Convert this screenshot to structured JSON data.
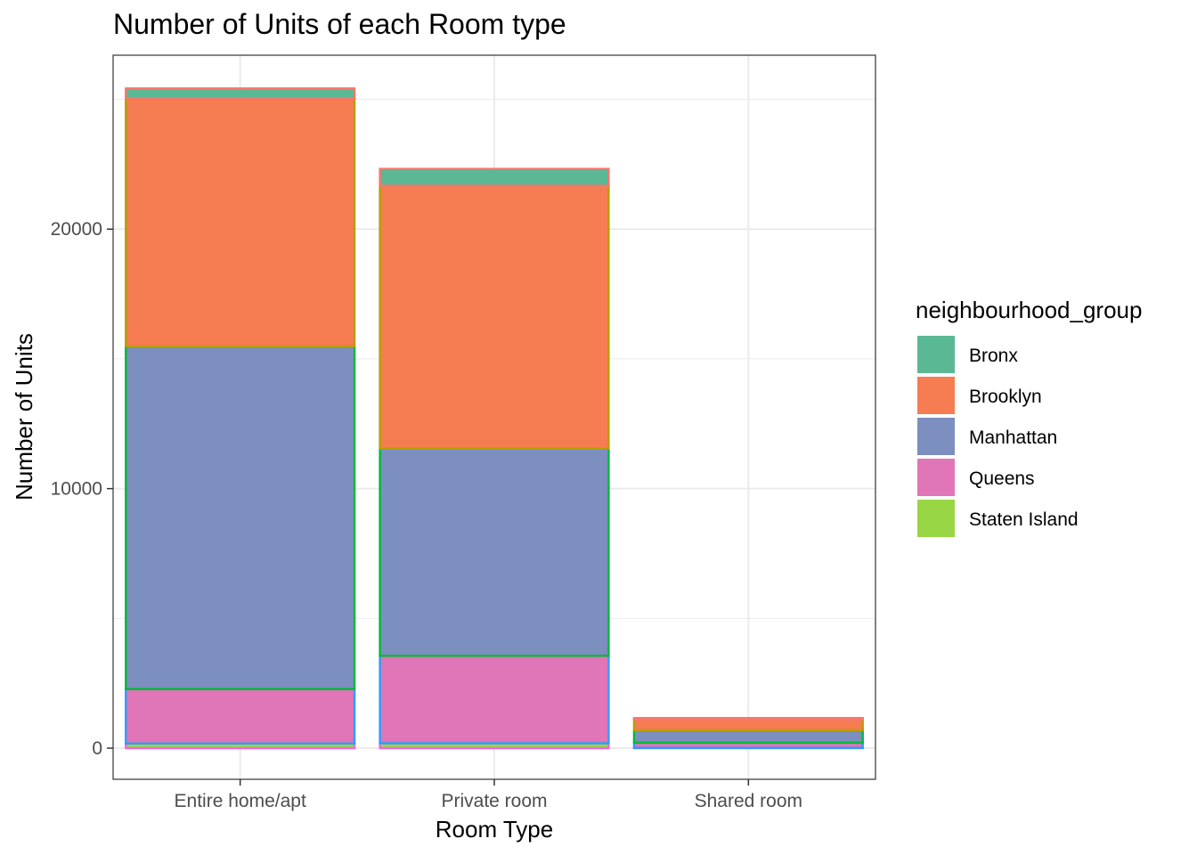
{
  "chart_data": {
    "type": "bar",
    "stacked": true,
    "title": "Number of Units of each Room type",
    "xlabel": "Room Type",
    "ylabel": "Number of Units",
    "categories": [
      "Entire home/apt",
      "Private room",
      "Shared room"
    ],
    "ylim": [
      -1200,
      26700
    ],
    "yticks": [
      0,
      10000,
      20000
    ],
    "grid": true,
    "legend": {
      "title": "neighbourhood_group",
      "placement": "right"
    },
    "stack_order_bottom_to_top": [
      "Staten Island",
      "Queens",
      "Manhattan",
      "Brooklyn",
      "Bronx"
    ],
    "series": [
      {
        "name": "Bronx",
        "color": "#5BB894",
        "values": [
          380,
          650,
          60
        ]
      },
      {
        "name": "Brooklyn",
        "color": "#F67C52",
        "values": [
          9560,
          10130,
          410
        ]
      },
      {
        "name": "Manhattan",
        "color": "#7D8FBF",
        "values": [
          13200,
          7980,
          480
        ]
      },
      {
        "name": "Queens",
        "color": "#E075B7",
        "values": [
          2100,
          3370,
          200
        ]
      },
      {
        "name": "Staten Island",
        "color": "#98D645",
        "values": [
          180,
          190,
          10
        ]
      }
    ],
    "outline_colors": {
      "Bronx": "#F8766D",
      "Brooklyn": "#B79F00",
      "Manhattan": "#00BA38",
      "Queens": "#2D9CFF",
      "Staten Island": "#F564E3"
    }
  }
}
